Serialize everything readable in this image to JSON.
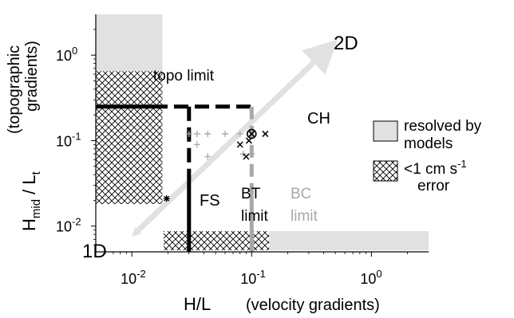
{
  "chart_data": {
    "type": "scatter",
    "scale": "log-log",
    "xlim": [
      0.005,
      3
    ],
    "ylim": [
      0.005,
      3
    ],
    "x_ticks": [
      {
        "value": 0.01,
        "base": "10",
        "exp": "-2"
      },
      {
        "value": 0.1,
        "base": "10",
        "exp": "-1"
      },
      {
        "value": 1,
        "base": "10",
        "exp": "0"
      }
    ],
    "y_ticks": [
      {
        "value": 0.01,
        "base": "10",
        "exp": "-2"
      },
      {
        "value": 0.1,
        "base": "10",
        "exp": "-1"
      },
      {
        "value": 1,
        "base": "10",
        "exp": "0"
      }
    ],
    "xlabel": "H/L",
    "xlabel_note": "(velocity gradients)",
    "ylabel_main": "H",
    "ylabel_main_sub": "mid",
    "ylabel_div": " / L",
    "ylabel_div_sub": "t",
    "ylabel_note_1": "(topographic",
    "ylabel_note_2": "gradients)",
    "diagonal_labels": {
      "upper": "2D",
      "lower": "1D"
    },
    "limits": {
      "topo": {
        "label": "topo limit",
        "y": 0.25
      },
      "bt": {
        "label_1": "BT",
        "label_2": "limit",
        "x": 0.03
      },
      "bc": {
        "label_1": "BC",
        "label_2": "limit",
        "x": 0.1,
        "color": "#a8a8a8"
      }
    },
    "shaded_regions": {
      "resolved_color": "#e1e1e1",
      "y_band_x_range": [
        0.005,
        0.018
      ],
      "y_resolved_above": 0.65,
      "x_band_y_range": [
        0.005,
        0.0075
      ],
      "x_resolved_above": 0.14
    },
    "site_labels": {
      "ch": "CH",
      "fs": "FS"
    },
    "series": [
      {
        "marker": "plus",
        "color": "#a8a8a8",
        "points": [
          [
            0.03,
            0.12
          ],
          [
            0.035,
            0.12
          ],
          [
            0.043,
            0.12
          ],
          [
            0.06,
            0.12
          ],
          [
            0.035,
            0.09
          ],
          [
            0.043,
            0.065
          ],
          [
            0.08,
            0.12
          ],
          [
            0.085,
            0.07
          ],
          [
            0.1,
            0.07
          ]
        ]
      },
      {
        "marker": "cross",
        "color": "#000000",
        "points": [
          [
            0.1,
            0.12
          ],
          [
            0.13,
            0.12
          ],
          [
            0.08,
            0.09
          ],
          [
            0.09,
            0.065
          ],
          [
            0.095,
            0.1
          ]
        ]
      },
      {
        "marker": "circled-cross",
        "color": "#000000",
        "points": [
          [
            0.1,
            0.12
          ]
        ]
      },
      {
        "marker": "star",
        "color": "#000000",
        "points": [
          [
            0.0195,
            0.021
          ]
        ]
      }
    ],
    "legend": {
      "position": "right",
      "items": [
        {
          "label_1": "resolved by",
          "label_2": "models",
          "swatch": "solid-grey"
        },
        {
          "label_1": "<1 cm s",
          "label_1_sup": "-1",
          "label_2": "error",
          "swatch": "crosshatch"
        }
      ]
    }
  }
}
